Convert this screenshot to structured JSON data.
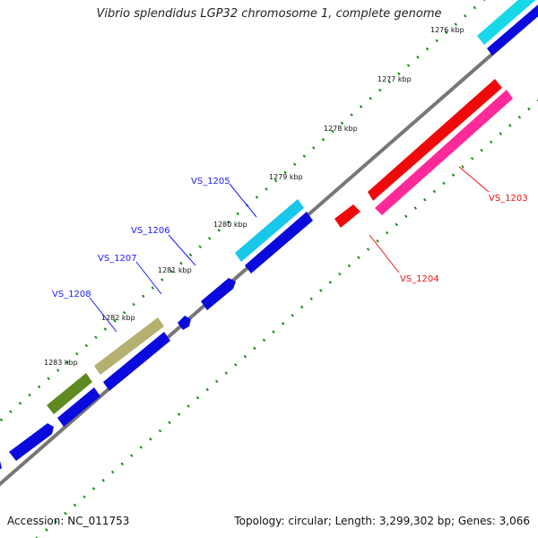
{
  "title": "Vibrio splendidus LGP32 chromosome 1, complete genome",
  "footer": {
    "accession": "Accession: NC_011753",
    "summary": "Topology: circular; Length: 3,299,302 bp; Genes: 3,066"
  },
  "colors": {
    "backbone": "#777777",
    "tick_dots": "#1a8a1a",
    "forward_label": "#1a1aff",
    "reverse_label": "#ee1111",
    "leader_forward": "#1a1aff",
    "leader_reverse": "#ee1111"
  },
  "ticks": [
    "1276 kbp",
    "1277 kbp",
    "1278 kbp",
    "1279 kbp",
    "1280 kbp",
    "1281 kbp",
    "1282 kbp",
    "1283 kbp"
  ],
  "gene_labels": [
    {
      "text": "VS_1203",
      "strand": "reverse"
    },
    {
      "text": "VS_1204",
      "strand": "reverse"
    },
    {
      "text": "VS_1205",
      "strand": "forward"
    },
    {
      "text": "VS_1206",
      "strand": "forward"
    },
    {
      "text": "VS_1207",
      "strand": "forward"
    },
    {
      "text": "VS_1208",
      "strand": "forward"
    }
  ]
}
